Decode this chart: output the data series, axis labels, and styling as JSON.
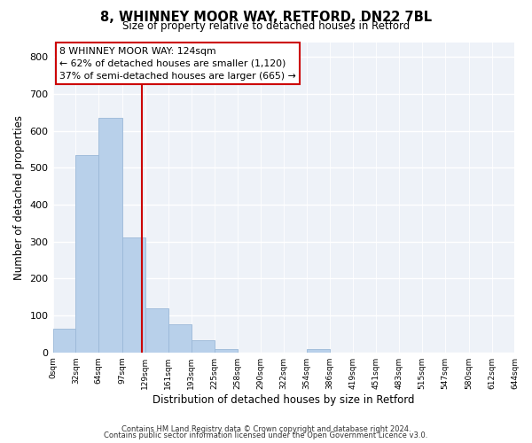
{
  "title": "8, WHINNEY MOOR WAY, RETFORD, DN22 7BL",
  "subtitle": "Size of property relative to detached houses in Retford",
  "xlabel": "Distribution of detached houses by size in Retford",
  "ylabel": "Number of detached properties",
  "bin_edges": [
    0,
    32,
    64,
    97,
    129,
    161,
    193,
    225,
    258,
    290,
    322,
    354,
    386,
    419,
    451,
    483,
    515,
    547,
    580,
    612,
    644
  ],
  "bin_counts": [
    65,
    535,
    635,
    312,
    120,
    75,
    32,
    10,
    0,
    0,
    0,
    8,
    0,
    0,
    0,
    0,
    0,
    0,
    0,
    0
  ],
  "property_size": 124,
  "bar_color": "#b8d0ea",
  "bar_edge_color": "#9ab8d8",
  "line_color": "#cc0000",
  "ylim": [
    0,
    840
  ],
  "yticks": [
    0,
    100,
    200,
    300,
    400,
    500,
    600,
    700,
    800
  ],
  "tick_labels": [
    "0sqm",
    "32sqm",
    "64sqm",
    "97sqm",
    "129sqm",
    "161sqm",
    "193sqm",
    "225sqm",
    "258sqm",
    "290sqm",
    "322sqm",
    "354sqm",
    "386sqm",
    "419sqm",
    "451sqm",
    "483sqm",
    "515sqm",
    "547sqm",
    "580sqm",
    "612sqm",
    "644sqm"
  ],
  "annotation_title": "8 WHINNEY MOOR WAY: 124sqm",
  "annotation_line1": "← 62% of detached houses are smaller (1,120)",
  "annotation_line2": "37% of semi-detached houses are larger (665) →",
  "footer1": "Contains HM Land Registry data © Crown copyright and database right 2024.",
  "footer2": "Contains public sector information licensed under the Open Government Licence v3.0.",
  "background_color": "#eef2f8"
}
